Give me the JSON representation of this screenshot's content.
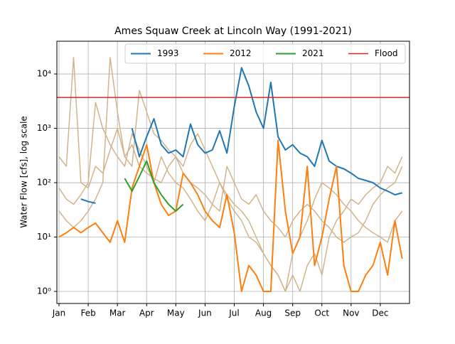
{
  "chart_data": {
    "type": "line",
    "title": "Ames Squaw Creek at Lincoln Way (1991-2021)",
    "ylabel": "Water Flow [cfs], log scale",
    "log_y": true,
    "grid": true,
    "legend": "upper right",
    "categories": [
      "Jan",
      null,
      null,
      null,
      "Feb",
      null,
      null,
      null,
      "Mar",
      null,
      null,
      null,
      "Apr",
      null,
      null,
      null,
      "May",
      null,
      null,
      null,
      "Jun",
      null,
      null,
      null,
      "Jul",
      null,
      null,
      null,
      "Aug",
      null,
      null,
      null,
      "Sep",
      null,
      null,
      null,
      "Oct",
      null,
      null,
      null,
      "Nov",
      null,
      null,
      null,
      "Dec",
      null,
      null,
      null
    ],
    "ylim": [
      0.6,
      40000
    ],
    "yticks": [
      {
        "value": 1,
        "label": "10⁰"
      },
      {
        "value": 10,
        "label": "10¹"
      },
      {
        "value": 100,
        "label": "10²"
      },
      {
        "value": 1000,
        "label": "10³"
      },
      {
        "value": 10000,
        "label": "10⁴"
      }
    ],
    "background_series": [
      {
        "color": "#d2b48c",
        "values": [
          300,
          200,
          20000,
          100,
          80,
          200,
          150,
          400,
          1000,
          300,
          200,
          5000,
          2000,
          800,
          600,
          400,
          300,
          200,
          500,
          800,
          400,
          200,
          100,
          60,
          40,
          30,
          20,
          10,
          5,
          3,
          2,
          1,
          2,
          1,
          3,
          5,
          2,
          10,
          20,
          30,
          50,
          40,
          60,
          80,
          100,
          200,
          150,
          300
        ]
      },
      {
        "color": "#d2b48c",
        "values": [
          80,
          50,
          40,
          60,
          100,
          3000,
          1000,
          500,
          300,
          200,
          800,
          400,
          200,
          100,
          300,
          150,
          100,
          80,
          50,
          30,
          20,
          40,
          100,
          50,
          30,
          20,
          10,
          8,
          5,
          3,
          2,
          1,
          5,
          10,
          20,
          50,
          100,
          80,
          60,
          40,
          30,
          20,
          15,
          12,
          10,
          8,
          20,
          30
        ]
      },
      {
        "color": "#d2b48c",
        "values": [
          30,
          20,
          15,
          20,
          30,
          50,
          100,
          20000,
          2000,
          300,
          500,
          200,
          150,
          120,
          100,
          200,
          300,
          150,
          100,
          80,
          60,
          40,
          30,
          200,
          100,
          50,
          40,
          60,
          30,
          20,
          15,
          10,
          20,
          30,
          40,
          30,
          20,
          15,
          10,
          8,
          10,
          12,
          20,
          40,
          60,
          80,
          100,
          200
        ]
      }
    ],
    "series": [
      {
        "name": "1993",
        "color": "#1f77b4",
        "values": [
          null,
          null,
          null,
          50,
          45,
          42,
          null,
          null,
          null,
          null,
          1000,
          300,
          700,
          1500,
          500,
          350,
          400,
          300,
          1200,
          500,
          350,
          400,
          900,
          350,
          2500,
          13000,
          6000,
          2000,
          1000,
          7000,
          700,
          400,
          500,
          350,
          300,
          200,
          600,
          250,
          200,
          180,
          150,
          120,
          110,
          100,
          80,
          70,
          60,
          65
        ]
      },
      {
        "name": "2012",
        "color": "#ff7f0e",
        "values": [
          10,
          12,
          15,
          12,
          15,
          18,
          12,
          8,
          20,
          8,
          80,
          200,
          500,
          100,
          40,
          25,
          30,
          150,
          100,
          60,
          30,
          20,
          15,
          60,
          12,
          1,
          3,
          2,
          1,
          1,
          600,
          30,
          5,
          10,
          200,
          3,
          10,
          50,
          200,
          3,
          1,
          1,
          2,
          3,
          8,
          2,
          20,
          4
        ]
      },
      {
        "name": "2021",
        "color": "#2ca02c",
        "values": [
          null,
          null,
          null,
          null,
          null,
          null,
          null,
          null,
          null,
          120,
          70,
          130,
          250,
          100,
          60,
          40,
          30,
          40,
          null,
          null,
          null,
          null,
          null,
          null,
          null,
          null,
          null,
          null,
          null,
          null,
          null,
          null,
          null,
          null,
          null,
          null,
          null,
          null,
          null,
          null,
          null,
          null,
          null,
          null,
          null,
          null,
          null,
          null
        ]
      }
    ],
    "flood": {
      "name": "Flood",
      "value": 3700,
      "color": "#d62728"
    }
  }
}
